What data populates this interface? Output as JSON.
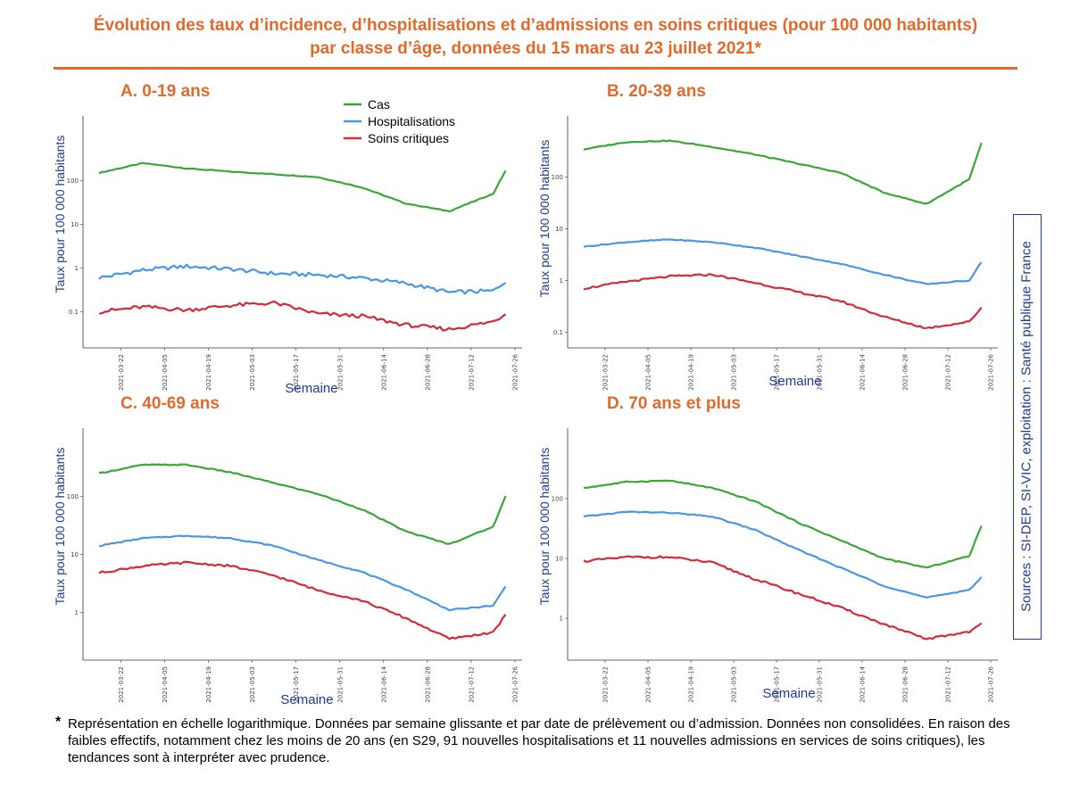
{
  "title_line1": "Évolution des taux d’incidence, d’hospitalisations et d’admissions en soins critiques (pour 100 000 habitants)",
  "title_line2": "par classe d’âge, données du 15 mars au 23 juillet 2021*",
  "source": "Sources : SI-DEP, SI-VIC, exploitation : Santé publique France",
  "footnote_star": "*",
  "footnote": "Représentation en échelle logarithmique. Données par semaine glissante et par date de prélèvement ou d’admission. Données non consolidées. En raison des faibles effectifs, notamment chez les moins de 20 ans (en S29, 91 nouvelles hospitalisations et 11 nouvelles admissions en services de soins critiques), les tendances sont à interpréter avec prudence.",
  "colors": {
    "cas": "#3aa63a",
    "hospitalisations": "#4a96e6",
    "soins_critiques": "#d42a3c",
    "accent": "#e06a2c",
    "axis_text": "#1f3a93"
  },
  "legend": [
    {
      "key": "cas",
      "label": "Cas"
    },
    {
      "key": "hospitalisations",
      "label": "Hospitalisations"
    },
    {
      "key": "soins_critiques",
      "label": "Soins critiques"
    }
  ],
  "x_ticks": [
    "2021-03-22",
    "2021-04-05",
    "2021-04-19",
    "2021-05-03",
    "2021-05-17",
    "2021-05-31",
    "2021-06-14",
    "2021-06-28",
    "2021-07-12",
    "2021-07-26"
  ],
  "chart_data": [
    {
      "type": "line",
      "title": "A. 0-19 ans",
      "xlabel": "Semaine",
      "ylabel": "Taux pour 100 000 habitants",
      "yscale": "log",
      "yticks": [
        "0.1",
        "1",
        "10",
        "100"
      ],
      "ylim": [
        0.015,
        3000
      ],
      "x": [
        "2021-03-15",
        "2021-03-29",
        "2021-04-12",
        "2021-04-26",
        "2021-05-10",
        "2021-05-24",
        "2021-06-07",
        "2021-06-21",
        "2021-07-05",
        "2021-07-19",
        "2021-07-23"
      ],
      "series": [
        {
          "name": "Cas",
          "values": [
            150,
            250,
            190,
            160,
            140,
            120,
            70,
            30,
            20,
            50,
            170
          ]
        },
        {
          "name": "Hospitalisations",
          "values": [
            0.6,
            0.9,
            1.1,
            0.95,
            0.75,
            0.7,
            0.6,
            0.45,
            0.28,
            0.3,
            0.5
          ]
        },
        {
          "name": "Soins critiques",
          "values": [
            0.1,
            0.13,
            0.11,
            0.14,
            0.16,
            0.09,
            0.08,
            0.05,
            0.04,
            0.06,
            0.09
          ]
        }
      ]
    },
    {
      "type": "line",
      "title": "B. 20-39 ans",
      "xlabel": "Semaine",
      "ylabel": "Taux pour 100 000 habitants",
      "yscale": "log",
      "yticks": [
        "0.1",
        "1",
        "10",
        "100"
      ],
      "ylim": [
        0.05,
        1500
      ],
      "x": [
        "2021-03-15",
        "2021-03-29",
        "2021-04-12",
        "2021-04-26",
        "2021-05-10",
        "2021-05-24",
        "2021-06-07",
        "2021-06-21",
        "2021-07-05",
        "2021-07-19",
        "2021-07-23"
      ],
      "series": [
        {
          "name": "Cas",
          "values": [
            340,
            470,
            500,
            380,
            270,
            180,
            120,
            50,
            30,
            90,
            450
          ]
        },
        {
          "name": "Hospitalisations",
          "values": [
            4.5,
            5.5,
            6.2,
            5.5,
            4.3,
            3.0,
            2.1,
            1.3,
            0.85,
            1.0,
            2.3
          ]
        },
        {
          "name": "Soins critiques",
          "values": [
            0.7,
            0.95,
            1.2,
            1.3,
            0.9,
            0.6,
            0.4,
            0.2,
            0.12,
            0.16,
            0.3
          ]
        }
      ]
    },
    {
      "type": "line",
      "title": "C. 40-69 ans",
      "xlabel": "Semaine",
      "ylabel": "Taux pour 100 000 habitants",
      "yscale": "log",
      "yticks": [
        "1",
        "10",
        "100"
      ],
      "ylim": [
        0.15,
        1500
      ],
      "x": [
        "2021-03-15",
        "2021-03-29",
        "2021-04-12",
        "2021-04-26",
        "2021-05-10",
        "2021-05-24",
        "2021-06-07",
        "2021-06-21",
        "2021-07-05",
        "2021-07-19",
        "2021-07-23"
      ],
      "series": [
        {
          "name": "Cas",
          "values": [
            250,
            350,
            350,
            260,
            170,
            110,
            60,
            25,
            15,
            30,
            100
          ]
        },
        {
          "name": "Hospitalisations",
          "values": [
            14,
            19,
            21,
            19,
            14,
            8,
            5,
            2.5,
            1.1,
            1.3,
            2.8
          ]
        },
        {
          "name": "Soins critiques",
          "values": [
            4.8,
            6.3,
            7.2,
            6.3,
            4.3,
            2.4,
            1.6,
            0.8,
            0.35,
            0.45,
            0.9
          ]
        }
      ]
    },
    {
      "type": "line",
      "title": "D. 70 ans et plus",
      "xlabel": "Semaine",
      "ylabel": "Taux pour 100 000 habitants",
      "yscale": "log",
      "yticks": [
        "1",
        "10",
        "100"
      ],
      "ylim": [
        0.2,
        1500
      ],
      "x": [
        "2021-03-15",
        "2021-03-29",
        "2021-04-12",
        "2021-04-26",
        "2021-05-10",
        "2021-05-24",
        "2021-06-07",
        "2021-06-21",
        "2021-07-05",
        "2021-07-19",
        "2021-07-23"
      ],
      "series": [
        {
          "name": "Cas",
          "values": [
            150,
            190,
            200,
            150,
            90,
            40,
            20,
            10,
            7,
            11,
            35
          ]
        },
        {
          "name": "Hospitalisations",
          "values": [
            50,
            60,
            58,
            50,
            30,
            14,
            7,
            3.5,
            2.2,
            3,
            4.8
          ]
        },
        {
          "name": "Soins critiques",
          "values": [
            9,
            10.5,
            10.5,
            8.5,
            4.5,
            2.6,
            1.5,
            0.8,
            0.45,
            0.6,
            0.8
          ]
        }
      ]
    }
  ]
}
